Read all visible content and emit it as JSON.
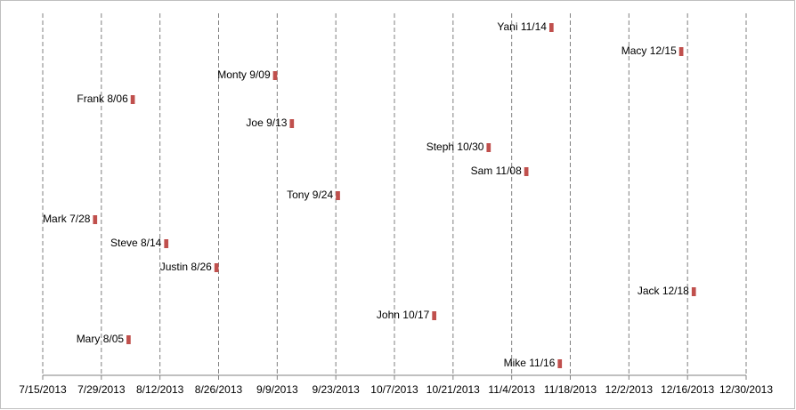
{
  "chart_data": {
    "type": "timeline",
    "categories": [
      "Yani 11/14",
      "Macy 12/15",
      "Monty 9/09",
      "Frank 8/06",
      "Joe 9/13",
      "Steph 10/30",
      "Sam 11/08",
      "Tony 9/24",
      "Mark 7/28",
      "Steve 8/14",
      "Justin 8/26",
      "Jack 12/18",
      "John 10/17",
      "Mary 8/05",
      "Mike 11/16"
    ],
    "values": [
      "2013-11-14",
      "2013-12-15",
      "2013-09-09",
      "2013-08-06",
      "2013-09-13",
      "2013-10-30",
      "2013-11-08",
      "2013-09-24",
      "2013-07-28",
      "2013-08-14",
      "2013-08-26",
      "2013-12-18",
      "2013-10-17",
      "2013-08-05",
      "2013-11-16"
    ],
    "color": "#c0504d",
    "xlim": [
      "2013-07-15",
      "2013-12-30"
    ],
    "xticks": [
      {
        "value": "2013-07-15",
        "label": "7/15/2013"
      },
      {
        "value": "2013-07-29",
        "label": "7/29/2013"
      },
      {
        "value": "2013-08-12",
        "label": "8/12/2013"
      },
      {
        "value": "2013-08-26",
        "label": "8/26/2013"
      },
      {
        "value": "2013-09-09",
        "label": "9/9/2013"
      },
      {
        "value": "2013-09-23",
        "label": "9/23/2013"
      },
      {
        "value": "2013-10-07",
        "label": "10/7/2013"
      },
      {
        "value": "2013-10-21",
        "label": "10/21/2013"
      },
      {
        "value": "2013-11-04",
        "label": "11/4/2013"
      },
      {
        "value": "2013-11-18",
        "label": "11/18/2013"
      },
      {
        "value": "2013-12-02",
        "label": "12/2/2013"
      },
      {
        "value": "2013-12-16",
        "label": "12/16/2013"
      },
      {
        "value": "2013-12-30",
        "label": "12/30/2013"
      }
    ],
    "grid": true
  }
}
